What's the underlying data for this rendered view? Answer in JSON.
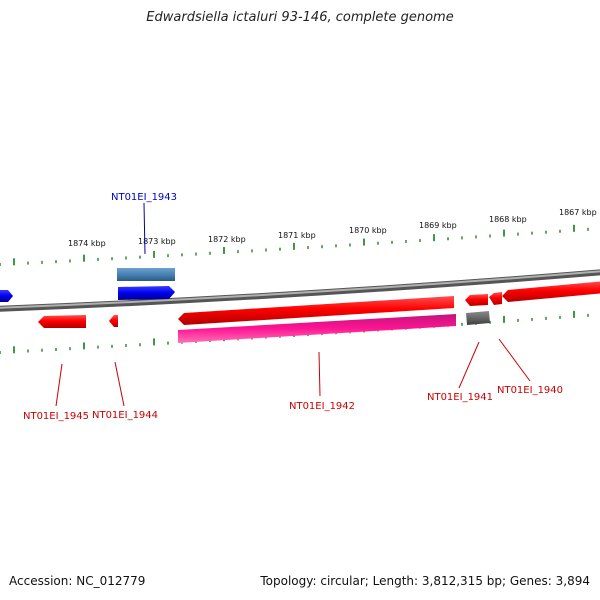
{
  "title": "Edwardsiella ictaluri 93-146, complete genome",
  "footer": {
    "accession": "Accession: NC_012779",
    "topology": "Topology: circular; Length: 3,812,315 bp; Genes: 3,894"
  },
  "scale_labels": [
    "1874 kbp",
    "1873 kbp",
    "1872 kbp",
    "1871 kbp",
    "1870 kbp",
    "1869 kbp",
    "1868 kbp",
    "1867 kbp"
  ],
  "genes": [
    {
      "id": "NT01EI_1943",
      "color": "#0000cc"
    },
    {
      "id": "NT01EI_1945",
      "color": "#cc0000"
    },
    {
      "id": "NT01EI_1944",
      "color": "#cc0000"
    },
    {
      "id": "NT01EI_1942",
      "color": "#cc0000"
    },
    {
      "id": "NT01EI_1941",
      "color": "#cc0000"
    },
    {
      "id": "NT01EI_1940",
      "color": "#cc0000"
    }
  ],
  "colors": {
    "backbone": "#777777",
    "tick": "#2e8b2e",
    "forward_gene": "#0000ee",
    "reverse_gene": "#ff0000",
    "rna_gene": "#4682b4",
    "pseudo_gene": "#ff1493",
    "other_gene": "#666666"
  }
}
